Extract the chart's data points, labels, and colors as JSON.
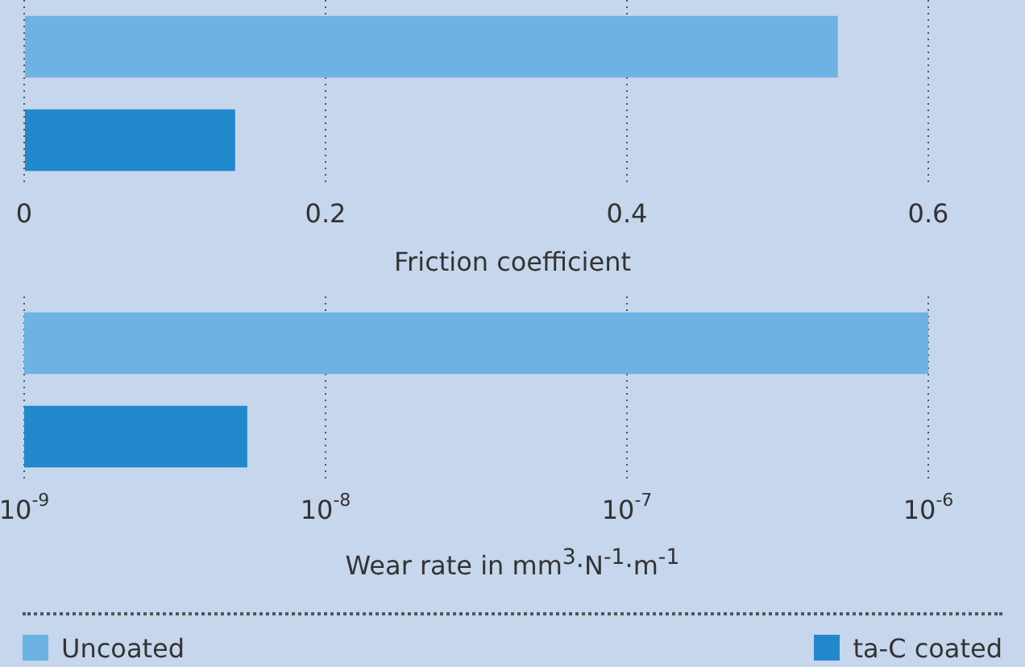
{
  "chart_data": [
    {
      "type": "bar",
      "orientation": "horizontal",
      "categories": [
        null
      ],
      "series": [
        {
          "color": "#6cb2e2",
          "values": [
            0.54
          ]
        },
        {
          "color": "#2288cc",
          "values": [
            0.14
          ]
        }
      ],
      "xlim": [
        0,
        0.6
      ],
      "xticks": [
        0,
        0.2,
        0.4,
        0.6
      ],
      "grid": "x",
      "tick_labels": "x",
      "xlabel": "Friction coefficient"
    },
    {
      "type": "bar",
      "orientation": "horizontal",
      "categories": [
        null
      ],
      "series": [
        {
          "name": "Uncoated",
          "color": "#6cb2e2",
          "values": [
            1e-06
          ]
        },
        {
          "name": "ta-C coated",
          "color": "#2288cc",
          "values": [
            5.5e-09
          ]
        }
      ],
      "xlim": [
        1e-09,
        1e-06
      ],
      "log": "x",
      "xticks": [
        {
          "value": 1e-09,
          "label": "10$^{-9}$"
        },
        {
          "value": 1e-08,
          "label": "10$^{-8}$"
        },
        {
          "value": 1e-07,
          "label": "10$^{-7}$"
        },
        {
          "value": 1e-06,
          "label": "10$^{-6}$"
        }
      ],
      "grid": "x",
      "tick_labels": "x",
      "xlabel": "Wear rate in mm$^{3}$·N$^{-1}$·m$^{-1}$",
      "legend": "bottom"
    }
  ]
}
